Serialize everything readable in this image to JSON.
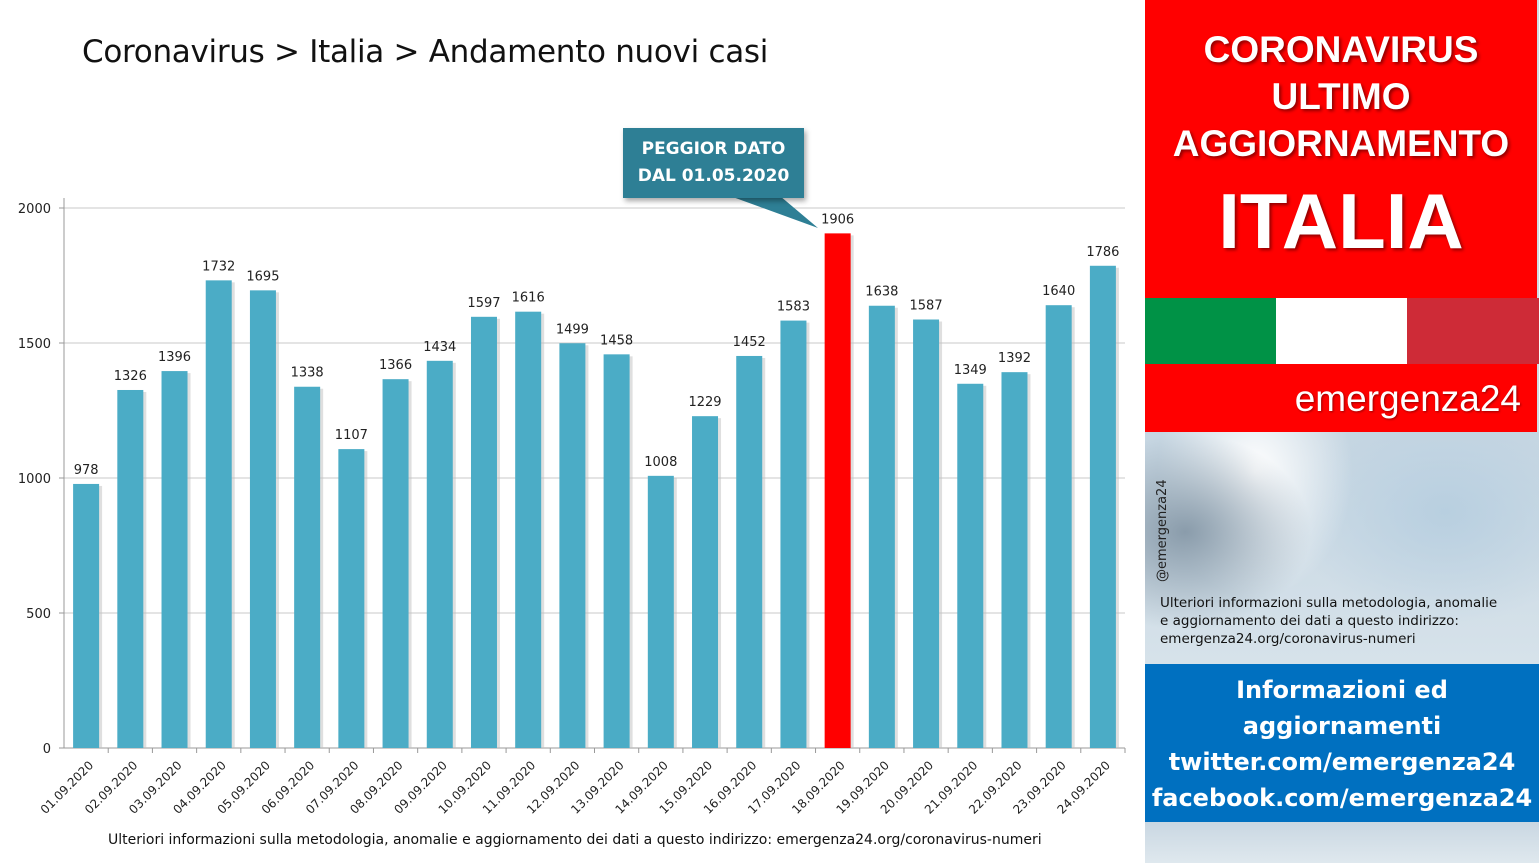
{
  "page_title": "Coronavirus > Italia > Andamento nuovi casi",
  "footer_note": "Ulteriori informazioni sulla metodologia, anomalie e aggiornamento dei dati a questo indirizzo: emergenza24.org/coronavirus-numeri",
  "callout": {
    "line1": "PEGGIOR DATO",
    "line2": "DAL 01.05.2020"
  },
  "right_panel": {
    "header_line1": "CORONAVIRUS",
    "header_line2": "ULTIMO",
    "header_line3": "AGGIORNAMENTO",
    "header_country": "ITALIA",
    "brand": "emergenza24",
    "handle": "@emergenza24",
    "note_line1": "Ulteriori informazioni sulla metodologia, anomalie",
    "note_line2": "e aggiornamento dei dati a questo indirizzo:",
    "note_line3": "emergenza24.org/coronavirus-numeri",
    "info_line1": "Informazioni ed",
    "info_line2": "aggiornamenti",
    "info_line3": "twitter.com/emergenza24",
    "info_line4": "facebook.com/emergenza24"
  },
  "colors": {
    "bar": "#4bacc6",
    "bar_highlight": "#ff0000",
    "callout": "#2e7f95",
    "grid": "#c8c8c8",
    "flag_green": "#009246",
    "flag_white": "#ffffff",
    "flag_red": "#ce2b37"
  },
  "chart_data": {
    "type": "bar",
    "categories": [
      "01.09.2020",
      "02.09.2020",
      "03.09.2020",
      "04.09.2020",
      "05.09.2020",
      "06.09.2020",
      "07.09.2020",
      "08.09.2020",
      "09.09.2020",
      "10.09.2020",
      "11.09.2020",
      "12.09.2020",
      "13.09.2020",
      "14.09.2020",
      "15.09.2020",
      "16.09.2020",
      "17.09.2020",
      "18.09.2020",
      "19.09.2020",
      "20.09.2020",
      "21.09.2020",
      "22.09.2020",
      "23.09.2020",
      "24.09.2020"
    ],
    "values": [
      978,
      1326,
      1396,
      1732,
      1695,
      1338,
      1107,
      1366,
      1434,
      1597,
      1616,
      1499,
      1458,
      1008,
      1229,
      1452,
      1583,
      1906,
      1638,
      1587,
      1349,
      1392,
      1640,
      1786
    ],
    "highlight_category": "18.09.2020",
    "title": "",
    "xlabel": "",
    "ylabel": "",
    "ylim": [
      0,
      2000
    ],
    "yticks": [
      0,
      500,
      1000,
      1500,
      2000
    ],
    "grid": true,
    "data_labels": true
  }
}
